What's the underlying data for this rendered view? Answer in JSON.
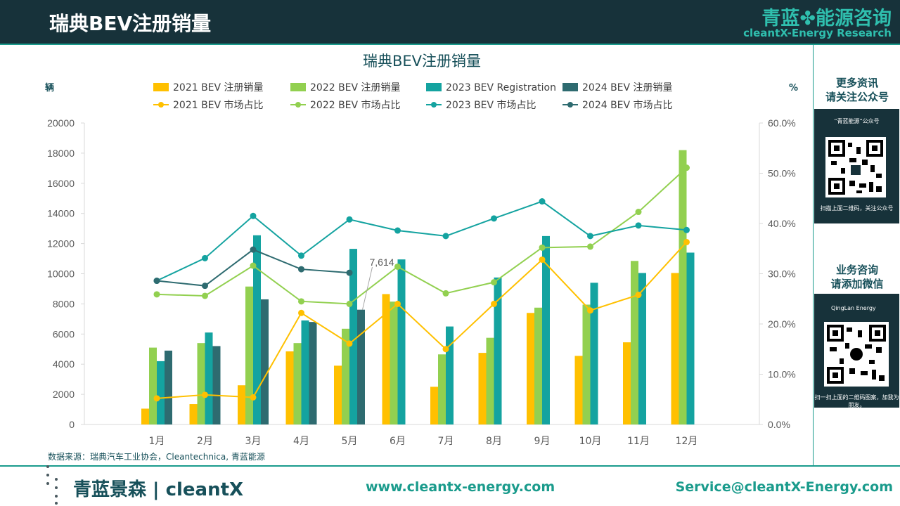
{
  "header": {
    "title": "瑞典BEV注册销量",
    "brand_cn": "青蓝✤能源咨询",
    "brand_en": "cleantX-Energy Research"
  },
  "sidebar": {
    "follow_heading_line1": "更多资讯",
    "follow_heading_line2": "请关注公众号",
    "follow_qr_caption": "“青蓝能源”公众号",
    "follow_qr_note": "扫描上面二维码，关注公众号",
    "consult_heading_line1": "业务咨询",
    "consult_heading_line2": "请添加微信",
    "consult_qr_caption": "QingLan Energy",
    "consult_qr_note": "扫一扫上面的二维码图案，加我为朋友。"
  },
  "footer": {
    "logo": "青蓝景森 | cleantX",
    "url": "www.cleantx-energy.com",
    "email": "Service@cleantX-Energy.com"
  },
  "colors": {
    "header_bg": "#17323a",
    "accent": "#1a9b8c",
    "bev2021": "#ffc000",
    "bev2022": "#92d050",
    "bev2023": "#14a3a0",
    "bev2024": "#2e6b70"
  },
  "chart_data": {
    "type": "bar",
    "title": "瑞典BEV注册销量",
    "source": "数据来源：瑞典汽车工业协会，Cleantechnica, 青蓝能源",
    "y_left_unit": "辆",
    "y_right_unit": "%",
    "ylim_left": [
      0,
      20000
    ],
    "ylim_right": [
      0,
      60
    ],
    "yticks_left": [
      "0",
      "2000",
      "4000",
      "6000",
      "8000",
      "10000",
      "12000",
      "14000",
      "16000",
      "18000",
      "20000"
    ],
    "yticks_right": [
      "0.0%",
      "10.0%",
      "20.0%",
      "30.0%",
      "40.0%",
      "50.0%",
      "60.0%"
    ],
    "categories": [
      "1月",
      "2月",
      "3月",
      "4月",
      "5月",
      "6月",
      "7月",
      "8月",
      "9月",
      "10月",
      "11月",
      "12月"
    ],
    "legend_position": "top",
    "bar_series": [
      {
        "name": "2021 BEV 注册销量",
        "color": "#ffc000",
        "values": [
          1050,
          1350,
          2600,
          4850,
          3900,
          8650,
          2500,
          4750,
          7400,
          4550,
          5450,
          10050
        ]
      },
      {
        "name": "2022 BEV 注册销量",
        "color": "#92d050",
        "values": [
          5100,
          5400,
          9150,
          5400,
          6350,
          8150,
          4650,
          5750,
          7750,
          7950,
          10850,
          18200
        ]
      },
      {
        "name": "2023 BEV Registration",
        "color": "#14a3a0",
        "values": [
          4200,
          6100,
          12550,
          6900,
          11650,
          10950,
          6500,
          9750,
          12500,
          9400,
          10050,
          11400
        ]
      },
      {
        "name": "2024 BEV 注册销量",
        "color": "#2e6b70",
        "values": [
          4900,
          5200,
          8300,
          6800,
          7614,
          null,
          null,
          null,
          null,
          null,
          null,
          null
        ]
      }
    ],
    "line_series": [
      {
        "name": "2021 BEV 市场占比",
        "color": "#ffc000",
        "values": [
          5.2,
          5.9,
          5.4,
          22.2,
          16.1,
          24.0,
          15.0,
          24.0,
          32.8,
          22.7,
          25.8,
          36.3
        ]
      },
      {
        "name": "2022 BEV 市场占比",
        "color": "#92d050",
        "values": [
          25.9,
          25.6,
          31.6,
          24.5,
          24.0,
          31.4,
          26.1,
          28.3,
          35.2,
          35.4,
          42.3,
          51.1
        ]
      },
      {
        "name": "2023 BEV 市场占比",
        "color": "#14a3a0",
        "values": [
          28.6,
          33.1,
          41.5,
          33.6,
          40.8,
          38.6,
          37.5,
          41.0,
          44.4,
          37.5,
          39.6,
          38.7
        ]
      },
      {
        "name": "2024 BEV 市场占比",
        "color": "#2e6b70",
        "values": [
          28.6,
          27.6,
          34.8,
          30.9,
          30.2,
          null,
          null,
          null,
          null,
          null,
          null,
          null
        ]
      }
    ],
    "annotations": [
      {
        "text": "7,614",
        "series": "2024 BEV 注册销量",
        "category": "5月"
      }
    ]
  }
}
